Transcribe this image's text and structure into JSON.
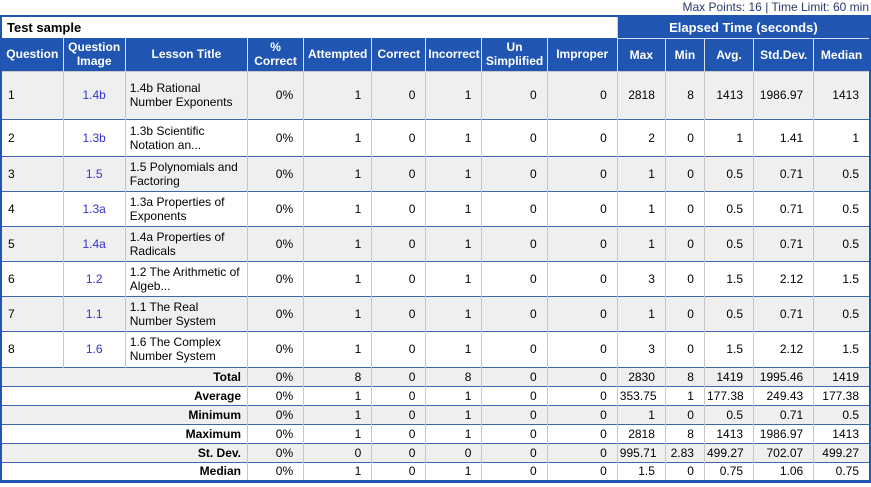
{
  "info_bar": {
    "text": "Max Points: 16 | Time Limit: 60 min"
  },
  "table": {
    "title": "Test sample",
    "elapsed_group_label": "Elapsed Time (seconds)",
    "columns": [
      "Question",
      "Question Image",
      "Lesson Title",
      "% Correct",
      "Attempted",
      "Correct",
      "Incorrect",
      "Un Simplified",
      "Improper",
      "Max",
      "Min",
      "Avg.",
      "Std.Dev.",
      "Median"
    ],
    "rows": [
      {
        "question": "1",
        "image_link": "1.4b",
        "lesson_title": "1.4b Rational Number Exponents",
        "values": [
          "0%",
          "1",
          "0",
          "1",
          "0",
          "0",
          "2818",
          "8",
          "1413",
          "1986.97",
          "1413"
        ]
      },
      {
        "question": "2",
        "image_link": "1.3b",
        "lesson_title": "1.3b Scientific Notation an...",
        "values": [
          "0%",
          "1",
          "0",
          "1",
          "0",
          "0",
          "2",
          "0",
          "1",
          "1.41",
          "1"
        ]
      },
      {
        "question": "3",
        "image_link": "1.5",
        "lesson_title": "1.5 Polynomials and Factoring",
        "values": [
          "0%",
          "1",
          "0",
          "1",
          "0",
          "0",
          "1",
          "0",
          "0.5",
          "0.71",
          "0.5"
        ]
      },
      {
        "question": "4",
        "image_link": "1.3a",
        "lesson_title": "1.3a Properties of Exponents",
        "values": [
          "0%",
          "1",
          "0",
          "1",
          "0",
          "0",
          "1",
          "0",
          "0.5",
          "0.71",
          "0.5"
        ]
      },
      {
        "question": "5",
        "image_link": "1.4a",
        "lesson_title": "1.4a Properties of Radicals",
        "values": [
          "0%",
          "1",
          "0",
          "1",
          "0",
          "0",
          "1",
          "0",
          "0.5",
          "0.71",
          "0.5"
        ]
      },
      {
        "question": "6",
        "image_link": "1.2",
        "lesson_title": "1.2 The Arithmetic of Algeb...",
        "values": [
          "0%",
          "1",
          "0",
          "1",
          "0",
          "0",
          "3",
          "0",
          "1.5",
          "2.12",
          "1.5"
        ]
      },
      {
        "question": "7",
        "image_link": "1.1",
        "lesson_title": "1.1 The Real Number System",
        "values": [
          "0%",
          "1",
          "0",
          "1",
          "0",
          "0",
          "1",
          "0",
          "0.5",
          "0.71",
          "0.5"
        ]
      },
      {
        "question": "8",
        "image_link": "1.6",
        "lesson_title": "1.6 The Complex Number System",
        "values": [
          "0%",
          "1",
          "0",
          "1",
          "0",
          "0",
          "3",
          "0",
          "1.5",
          "2.12",
          "1.5"
        ]
      }
    ],
    "summary_rows": [
      {
        "label": "Total",
        "values": [
          "0%",
          "8",
          "0",
          "8",
          "0",
          "0",
          "2830",
          "8",
          "1419",
          "1995.46",
          "1419"
        ]
      },
      {
        "label": "Average",
        "values": [
          "0%",
          "1",
          "0",
          "1",
          "0",
          "0",
          "353.75",
          "1",
          "177.38",
          "249.43",
          "177.38"
        ]
      },
      {
        "label": "Minimum",
        "values": [
          "0%",
          "1",
          "0",
          "1",
          "0",
          "0",
          "1",
          "0",
          "0.5",
          "0.71",
          "0.5"
        ]
      },
      {
        "label": "Maximum",
        "values": [
          "0%",
          "1",
          "0",
          "1",
          "0",
          "0",
          "2818",
          "8",
          "1413",
          "1986.97",
          "1413"
        ]
      },
      {
        "label": "St. Dev.",
        "values": [
          "0%",
          "0",
          "0",
          "0",
          "0",
          "0",
          "995.71",
          "2.83",
          "499.27",
          "702.07",
          "499.27"
        ]
      },
      {
        "label": "Median",
        "values": [
          "0%",
          "1",
          "0",
          "1",
          "0",
          "0",
          "1.5",
          "0",
          "0.75",
          "1.06",
          "0.75"
        ]
      }
    ]
  },
  "colors": {
    "header_blue": "#2056b2",
    "row_separator_blue": "#3e66b2",
    "row_alt_gray": "#efefef",
    "link_blue": "#3333cc",
    "info_text_navy": "#2a3a6e"
  }
}
